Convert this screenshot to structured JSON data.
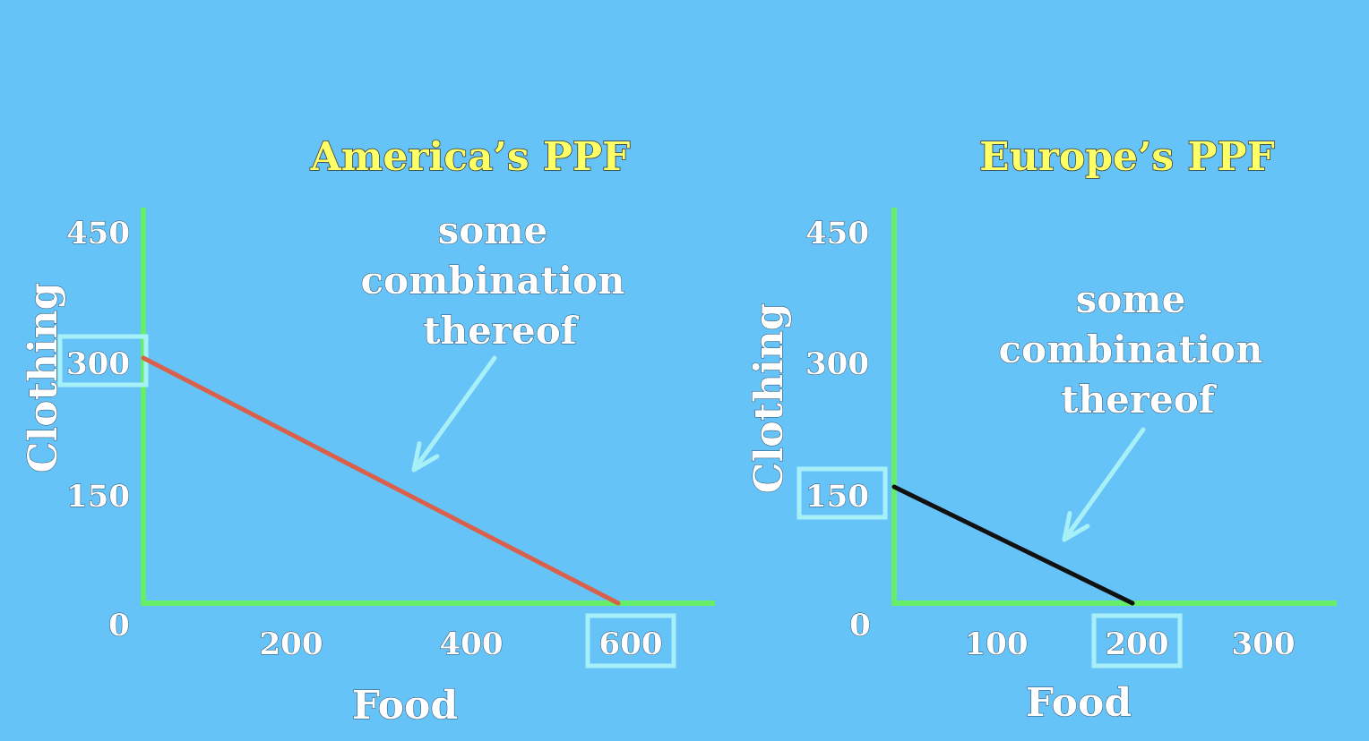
{
  "chart_data": [
    {
      "type": "line",
      "title": "America’s PPF",
      "xlabel": "Food",
      "ylabel": "Clothing",
      "xlim": [
        0,
        700
      ],
      "ylim": [
        0,
        450
      ],
      "x_ticks": [
        200,
        400,
        600
      ],
      "y_ticks": [
        450,
        300,
        150
      ],
      "origin_label": "0",
      "highlighted_ticks": {
        "x": 600,
        "y": 300
      },
      "series": [
        {
          "x": [
            0,
            600
          ],
          "y": [
            300,
            0
          ],
          "color": "#d9604a"
        }
      ],
      "annotation": {
        "lines": [
          "some",
          "combination",
          "thereof"
        ]
      },
      "axis_color": "#66ee66",
      "highlight_color": "#a8f0f8",
      "arrow_color": "#a8f0f8"
    },
    {
      "type": "line",
      "title": "Europe’s PPF",
      "xlabel": "Food",
      "ylabel": "Clothing",
      "xlim": [
        0,
        350
      ],
      "ylim": [
        0,
        450
      ],
      "x_ticks": [
        100,
        200,
        300
      ],
      "y_ticks": [
        450,
        300,
        150
      ],
      "origin_label": "0",
      "highlighted_ticks": {
        "x": 200,
        "y": 150
      },
      "series": [
        {
          "x": [
            0,
            200
          ],
          "y": [
            150,
            0
          ],
          "color": "#111111"
        }
      ],
      "annotation": {
        "lines": [
          "some",
          "combination",
          "thereof"
        ]
      },
      "axis_color": "#66ee66",
      "highlight_color": "#a8f0f8",
      "arrow_color": "#a8f0f8"
    }
  ]
}
